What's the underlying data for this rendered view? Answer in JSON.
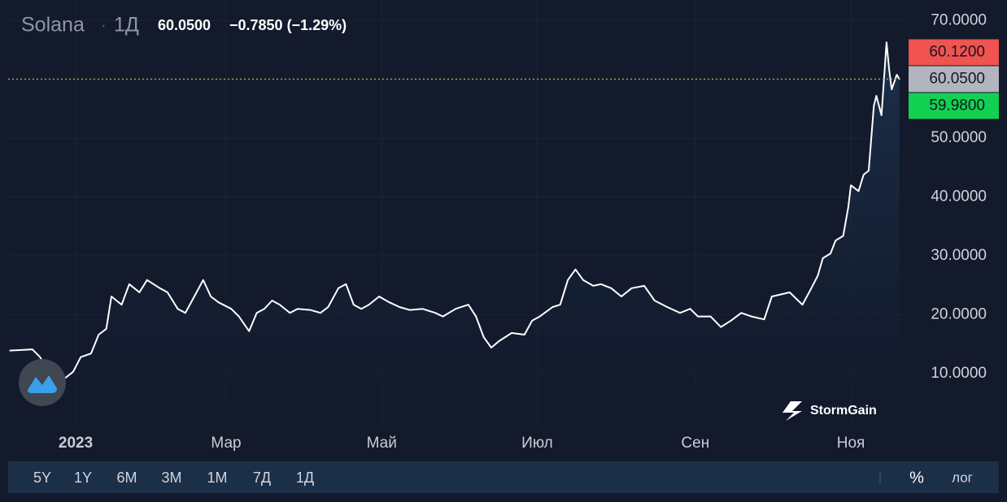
{
  "header": {
    "title": "Solana",
    "interval": "1Д",
    "price": "60.0500",
    "change": "−0.7850 (−1.29%)"
  },
  "chart_data": {
    "type": "line",
    "color": "#ffffff",
    "x": [
      -26,
      -17,
      -14,
      -9,
      -6,
      -1,
      2,
      6,
      9,
      12,
      14,
      18,
      21,
      25,
      28,
      33,
      36,
      40,
      43,
      47,
      50,
      53,
      56,
      61,
      64,
      68,
      71,
      74,
      77,
      80,
      84,
      87,
      92,
      96,
      99,
      103,
      106,
      109,
      112,
      115,
      119,
      123,
      127,
      131,
      136,
      141,
      144,
      149,
      154,
      157,
      160,
      163,
      166,
      171,
      176,
      179,
      182,
      187,
      190,
      193,
      196,
      199,
      203,
      206,
      210,
      214,
      218,
      223,
      227,
      232,
      237,
      241,
      244,
      249,
      253,
      257,
      261,
      265,
      270,
      273,
      277,
      280,
      285,
      288,
      291,
      293,
      296,
      298,
      301,
      303,
      304,
      307,
      309,
      311,
      313,
      314,
      316,
      318,
      319,
      320,
      322,
      323
    ],
    "values": [
      13.9,
      14.1,
      12.8,
      9.3,
      8.6,
      10.3,
      12.8,
      13.4,
      16.6,
      17.6,
      23.1,
      21.7,
      25.2,
      23.8,
      25.9,
      24.5,
      23.8,
      21.0,
      20.3,
      23.5,
      25.9,
      23.1,
      22.1,
      21.0,
      19.7,
      17.2,
      20.3,
      21.0,
      22.4,
      21.7,
      20.3,
      21.0,
      20.8,
      20.3,
      21.3,
      24.5,
      25.2,
      21.7,
      21.0,
      21.7,
      23.1,
      22.1,
      21.3,
      20.8,
      21.0,
      20.3,
      19.7,
      21.0,
      21.7,
      19.7,
      16.2,
      14.4,
      15.5,
      16.9,
      16.6,
      19.0,
      19.7,
      21.3,
      21.7,
      25.9,
      27.7,
      25.9,
      24.9,
      25.2,
      24.5,
      23.1,
      24.5,
      24.9,
      22.4,
      21.3,
      20.3,
      21.0,
      19.7,
      19.7,
      17.9,
      19.0,
      20.3,
      19.7,
      19.2,
      23.1,
      23.5,
      23.8,
      21.7,
      24.1,
      26.6,
      29.6,
      30.4,
      32.6,
      33.4,
      38.3,
      42.0,
      41.0,
      43.8,
      44.5,
      55.5,
      57.2,
      53.9,
      66.3,
      61.7,
      58.3,
      60.8,
      60.05
    ],
    "xlim": [
      -26.5,
      324.4
    ],
    "xticks": [
      {
        "value": 0,
        "label": "2023"
      },
      {
        "value": 59,
        "label": "Мар"
      },
      {
        "value": 120,
        "label": "Май"
      },
      {
        "value": 181,
        "label": "Июл"
      },
      {
        "value": 243,
        "label": "Сен"
      },
      {
        "value": 304,
        "label": "Ноя"
      }
    ],
    "ylim": [
      1,
      73.5
    ],
    "yticks": [
      {
        "value": 10,
        "label": "10.0000"
      },
      {
        "value": 20,
        "label": "20.0000"
      },
      {
        "value": 30,
        "label": "30.0000"
      },
      {
        "value": 40,
        "label": "40.0000"
      },
      {
        "value": 50,
        "label": "50.0000"
      },
      {
        "value": 60,
        "label": "60.0000"
      },
      {
        "value": 70,
        "label": "70.0000"
      }
    ],
    "grid": true,
    "price_labels": [
      {
        "value": 60.12,
        "label": "60.1200",
        "color": "#f05350"
      },
      {
        "value": 60.05,
        "label": "60.0500",
        "color": "#b2b5be"
      },
      {
        "value": 59.98,
        "label": "59.9800",
        "color": "#12d152"
      }
    ]
  },
  "logo": "StormGain",
  "toolbar": {
    "ranges": [
      "5Y",
      "1Y",
      "6M",
      "3M",
      "1M",
      "7Д",
      "1Д"
    ],
    "percent": "%",
    "log": "лог"
  }
}
